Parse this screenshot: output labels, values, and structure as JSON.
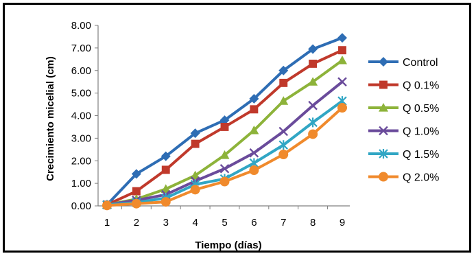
{
  "chart_data": {
    "type": "line",
    "title": "",
    "xlabel": "Tiempo (días)",
    "ylabel": "Crecimiento micelial (cm)",
    "x": [
      1,
      2,
      3,
      4,
      5,
      6,
      7,
      8,
      9
    ],
    "x_tick_labels": [
      "1",
      "2",
      "3",
      "4",
      "5",
      "6",
      "7",
      "8",
      "9"
    ],
    "ylim": [
      0,
      8
    ],
    "y_ticks": [
      0,
      1,
      2,
      3,
      4,
      5,
      6,
      7,
      8
    ],
    "y_tick_labels": [
      "0.00",
      "1.00",
      "2.00",
      "3.00",
      "4.00",
      "5.00",
      "6.00",
      "7.00",
      "8.00"
    ],
    "grid": false,
    "legend_position": "right",
    "series": [
      {
        "name": "Control",
        "color": "#2e6db4",
        "marker": "diamond",
        "values": [
          0.05,
          1.42,
          2.2,
          3.22,
          3.8,
          4.75,
          6.0,
          6.95,
          7.45
        ]
      },
      {
        "name": "Q 0.1%",
        "color": "#c0392b",
        "marker": "square",
        "values": [
          0.05,
          0.65,
          1.6,
          2.75,
          3.5,
          4.28,
          5.45,
          6.3,
          6.9
        ]
      },
      {
        "name": "Q 0.5%",
        "color": "#8db33a",
        "marker": "triangle",
        "values": [
          0.05,
          0.3,
          0.75,
          1.35,
          2.25,
          3.35,
          4.65,
          5.5,
          6.45
        ]
      },
      {
        "name": "Q 1.0%",
        "color": "#6a4b9b",
        "marker": "x",
        "values": [
          0.05,
          0.25,
          0.5,
          1.1,
          1.65,
          2.35,
          3.3,
          4.45,
          5.5
        ]
      },
      {
        "name": "Q 1.5%",
        "color": "#31a6c4",
        "marker": "star",
        "values": [
          0.05,
          0.15,
          0.35,
          0.95,
          1.2,
          1.9,
          2.7,
          3.7,
          4.65
        ]
      },
      {
        "name": "Q 2.0%",
        "color": "#f08a2c",
        "marker": "circle",
        "values": [
          0.02,
          0.1,
          0.18,
          0.72,
          1.08,
          1.58,
          2.28,
          3.18,
          4.35
        ]
      }
    ]
  }
}
